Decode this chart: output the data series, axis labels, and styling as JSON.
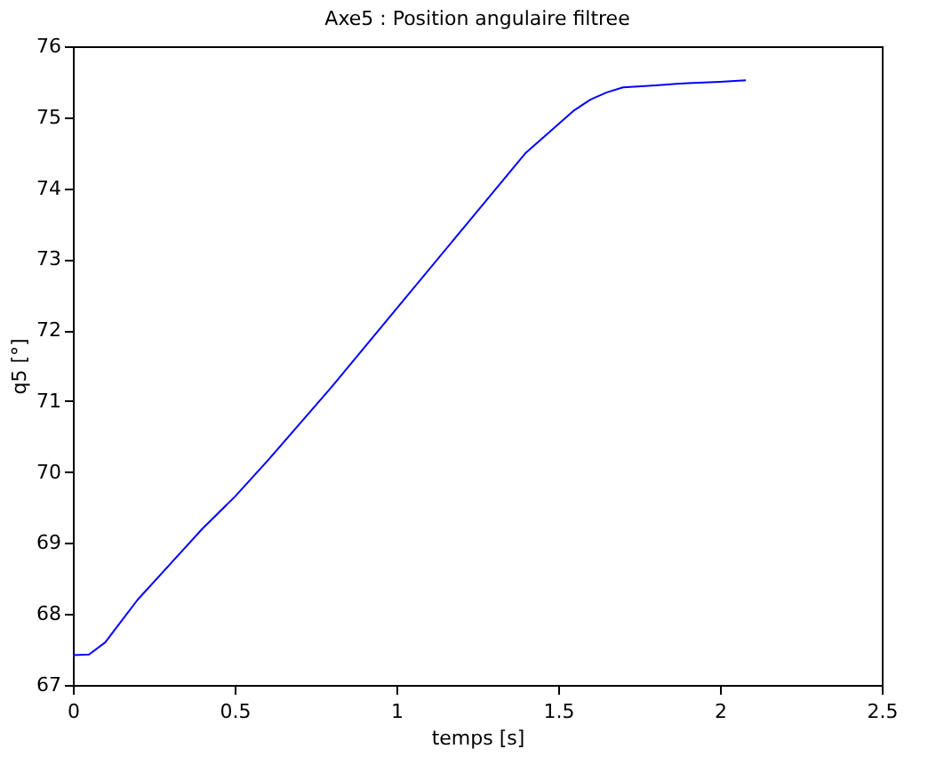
{
  "chart_data": {
    "type": "line",
    "title": "Axe5 : Position angulaire filtree",
    "xlabel": "temps [s]",
    "ylabel": "q5 [°]",
    "xlim": [
      0,
      2.5
    ],
    "xticks": [
      0,
      0.5,
      1,
      1.5,
      2,
      2.5
    ],
    "ylim": [
      67,
      76
    ],
    "yticks": [
      67,
      68,
      69,
      70,
      71,
      72,
      73,
      74,
      75,
      76
    ],
    "grid": false,
    "series": [
      {
        "color": "#0000ff",
        "x": [
          0,
          0.05,
          0.1,
          0.15,
          0.2,
          0.3,
          0.4,
          0.5,
          0.6,
          0.8,
          1.0,
          1.2,
          1.4,
          1.5,
          1.55,
          1.6,
          1.65,
          1.7,
          1.8,
          1.9,
          2.0,
          2.08
        ],
        "values": [
          67.42,
          67.43,
          67.6,
          67.9,
          68.2,
          68.7,
          69.2,
          69.65,
          70.15,
          71.2,
          72.3,
          73.4,
          74.5,
          74.9,
          75.1,
          75.25,
          75.35,
          75.42,
          75.45,
          75.48,
          75.5,
          75.52
        ]
      }
    ]
  }
}
